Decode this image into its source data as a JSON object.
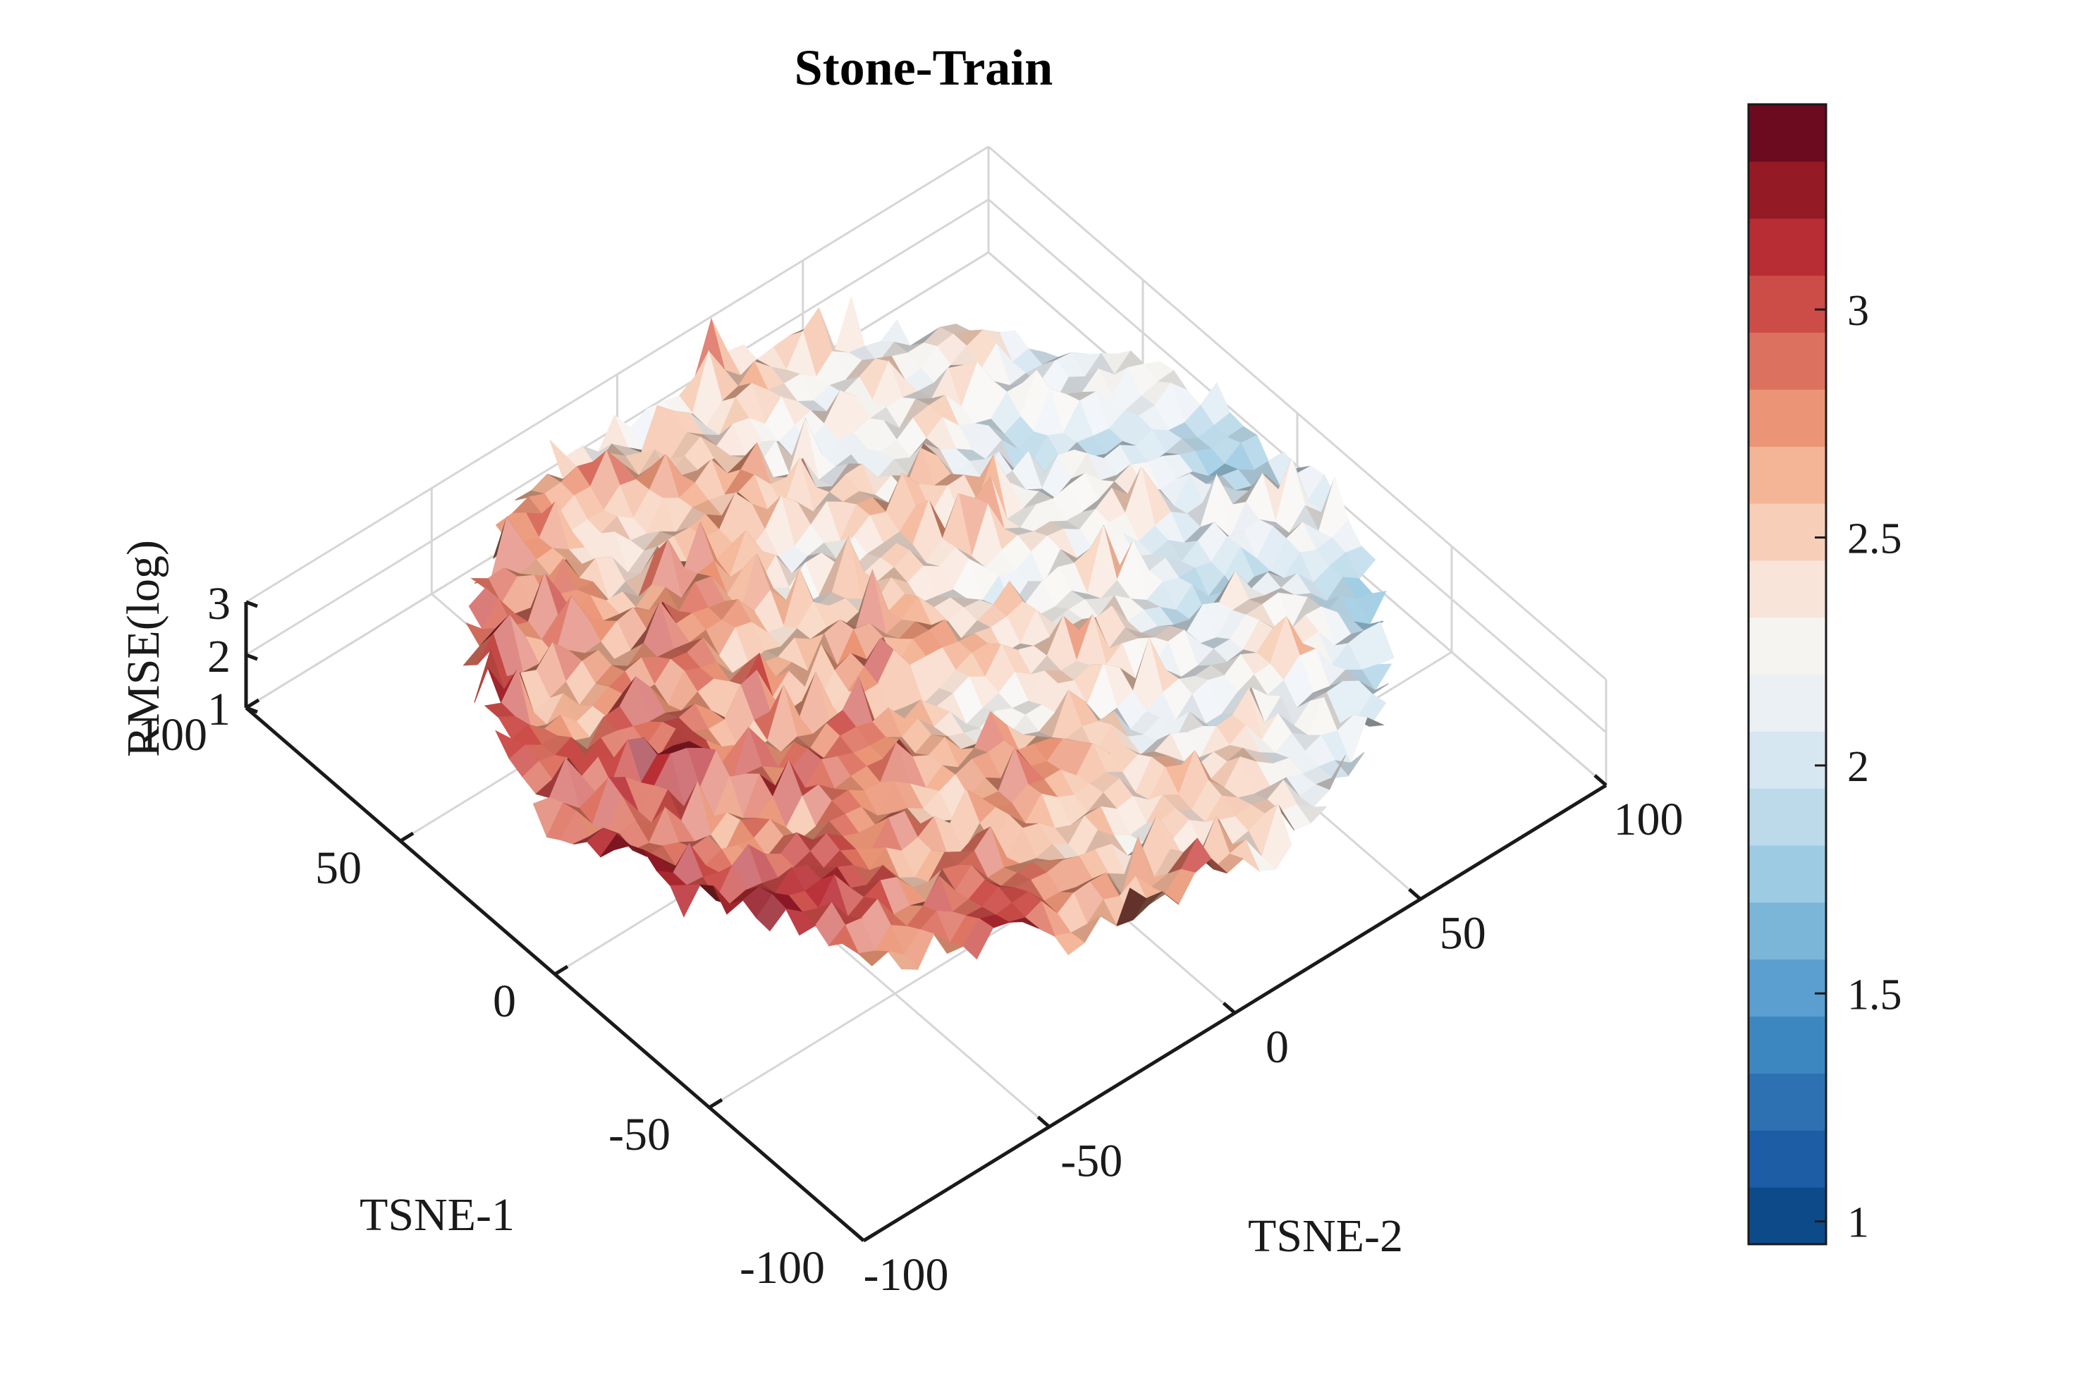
{
  "chart_data": {
    "type": "surface3d",
    "title": "Stone-Train",
    "xlabel": "TSNE-1",
    "ylabel": "TSNE-2",
    "zlabel": "RMSE(log)",
    "xlim": [
      -100,
      100
    ],
    "ylim": [
      -100,
      100
    ],
    "zlim": [
      1,
      3
    ],
    "x_ticks": [
      "-100",
      "-50",
      "0",
      "50",
      "100"
    ],
    "y_ticks": [
      "-100",
      "-50",
      "0",
      "50",
      "100"
    ],
    "z_ticks": [
      "1",
      "2",
      "3"
    ],
    "grid": true,
    "colormap": "RdBu_r",
    "colorbar": {
      "limits": [
        0.95,
        3.45
      ],
      "levels": 20,
      "ticks": [
        1,
        1.5,
        2,
        2.5,
        3
      ],
      "tick_labels": [
        "1",
        "1.5",
        "2",
        "2.5",
        "3"
      ],
      "colors": [
        "#0d4a8a",
        "#1c5da6",
        "#2d71b3",
        "#3d87c0",
        "#5a9fcf",
        "#7bb6d9",
        "#9dcbe3",
        "#bcdaea",
        "#d7e7f1",
        "#ebf0f5",
        "#f6f4f1",
        "#f8e4d9",
        "#f7cfb9",
        "#f4b597",
        "#eb9576",
        "#dd7160",
        "#cc4c48",
        "#b82c33",
        "#941a26",
        "#6c0a1f"
      ]
    },
    "surface_trend": "RMSE is highest (~3.3) toward low TSNE-1 / low TSNE-2 and lowest (~1.0) toward high TSNE-2 / low TSNE-1, with a mid region around 2.3-2.6"
  }
}
